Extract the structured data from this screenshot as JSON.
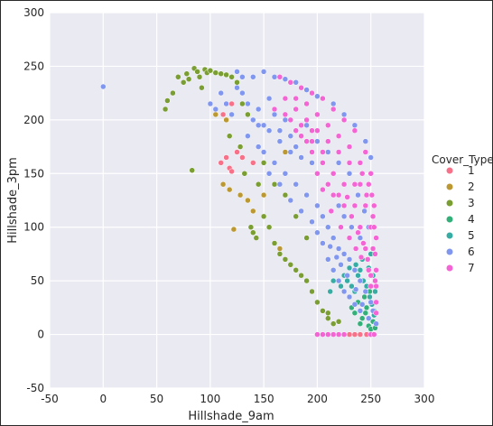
{
  "chart_data": {
    "type": "scatter",
    "title": "",
    "xlabel": "Hillshade_9am",
    "ylabel": "Hillshade_3pm",
    "xlim": [
      -50,
      300
    ],
    "ylim": [
      -50,
      300
    ],
    "x_ticks": [
      -50,
      0,
      50,
      100,
      150,
      200,
      250,
      300
    ],
    "y_ticks": [
      -50,
      0,
      50,
      100,
      150,
      200,
      250,
      300
    ],
    "grid": true,
    "background": "#eaeaf2",
    "legend": {
      "title": "Cover_Type",
      "placement": "right"
    },
    "series": [
      {
        "name": "1",
        "color": "#f77189",
        "points": [
          [
            110,
            160
          ],
          [
            115,
            165
          ],
          [
            118,
            155
          ],
          [
            120,
            152
          ],
          [
            125,
            170
          ],
          [
            130,
            165
          ],
          [
            140,
            160
          ],
          [
            120,
            215
          ],
          [
            112,
            205
          ],
          [
            230,
            0
          ],
          [
            235,
            0
          ],
          [
            240,
            0
          ],
          [
            246,
            0
          ]
        ]
      },
      {
        "name": "2",
        "color": "#bb9832",
        "points": [
          [
            112,
            140
          ],
          [
            118,
            135
          ],
          [
            122,
            98
          ],
          [
            128,
            130
          ],
          [
            135,
            125
          ],
          [
            150,
            130
          ],
          [
            170,
            170
          ],
          [
            105,
            205
          ],
          [
            115,
            200
          ],
          [
            140,
            115
          ],
          [
            165,
            80
          ],
          [
            180,
            60
          ]
        ]
      },
      {
        "name": "3",
        "color": "#7a9e31",
        "points": [
          [
            58,
            210
          ],
          [
            60,
            218
          ],
          [
            65,
            225
          ],
          [
            70,
            240
          ],
          [
            75,
            235
          ],
          [
            78,
            243
          ],
          [
            80,
            238
          ],
          [
            85,
            248
          ],
          [
            83,
            153
          ],
          [
            88,
            245
          ],
          [
            90,
            240
          ],
          [
            92,
            230
          ],
          [
            95,
            247
          ],
          [
            97,
            244
          ],
          [
            100,
            246
          ],
          [
            105,
            244
          ],
          [
            110,
            243
          ],
          [
            115,
            242
          ],
          [
            120,
            240
          ],
          [
            125,
            235
          ],
          [
            130,
            215
          ],
          [
            135,
            205
          ],
          [
            138,
            100
          ],
          [
            140,
            95
          ],
          [
            143,
            90
          ],
          [
            145,
            140
          ],
          [
            150,
            110
          ],
          [
            155,
            100
          ],
          [
            160,
            85
          ],
          [
            165,
            75
          ],
          [
            170,
            70
          ],
          [
            175,
            65
          ],
          [
            180,
            60
          ],
          [
            185,
            55
          ],
          [
            190,
            50
          ],
          [
            195,
            40
          ],
          [
            200,
            30
          ],
          [
            205,
            22
          ],
          [
            210,
            15
          ],
          [
            215,
            10
          ],
          [
            110,
            225
          ],
          [
            118,
            185
          ],
          [
            128,
            175
          ],
          [
            132,
            150
          ],
          [
            150,
            160
          ],
          [
            160,
            140
          ],
          [
            170,
            130
          ],
          [
            180,
            110
          ],
          [
            190,
            90
          ],
          [
            210,
            20
          ],
          [
            220,
            12
          ]
        ]
      },
      {
        "name": "4",
        "color": "#33b07a",
        "points": [
          [
            240,
            10
          ],
          [
            242,
            15
          ],
          [
            245,
            20
          ],
          [
            248,
            8
          ],
          [
            250,
            5
          ],
          [
            252,
            12
          ],
          [
            254,
            6
          ],
          [
            246,
            25
          ],
          [
            238,
            30
          ],
          [
            235,
            20
          ],
          [
            232,
            25
          ],
          [
            244,
            35
          ],
          [
            250,
            30
          ],
          [
            253,
            22
          ],
          [
            249,
            40
          ]
        ]
      },
      {
        "name": "5",
        "color": "#36ada4",
        "points": [
          [
            225,
            55
          ],
          [
            228,
            50
          ],
          [
            232,
            45
          ],
          [
            235,
            40
          ],
          [
            238,
            55
          ],
          [
            240,
            60
          ],
          [
            243,
            50
          ],
          [
            246,
            45
          ],
          [
            249,
            35
          ],
          [
            251,
            28
          ],
          [
            253,
            18
          ],
          [
            230,
            62
          ],
          [
            236,
            65
          ],
          [
            242,
            70
          ],
          [
            248,
            62
          ],
          [
            252,
            55
          ],
          [
            254,
            40
          ],
          [
            222,
            45
          ],
          [
            215,
            50
          ],
          [
            212,
            40
          ],
          [
            245,
            80
          ],
          [
            250,
            75
          ]
        ]
      },
      {
        "name": "6",
        "color": "#8197ef",
        "points": [
          [
            0,
            231
          ],
          [
            100,
            215
          ],
          [
            105,
            210
          ],
          [
            110,
            225
          ],
          [
            115,
            215
          ],
          [
            120,
            205
          ],
          [
            125,
            230
          ],
          [
            130,
            225
          ],
          [
            135,
            215
          ],
          [
            140,
            200
          ],
          [
            145,
            210
          ],
          [
            150,
            195
          ],
          [
            155,
            220
          ],
          [
            160,
            205
          ],
          [
            165,
            190
          ],
          [
            170,
            200
          ],
          [
            175,
            185
          ],
          [
            180,
            175
          ],
          [
            150,
            170
          ],
          [
            160,
            160
          ],
          [
            170,
            150
          ],
          [
            180,
            140
          ],
          [
            190,
            130
          ],
          [
            200,
            120
          ],
          [
            205,
            110
          ],
          [
            210,
            100
          ],
          [
            215,
            90
          ],
          [
            220,
            80
          ],
          [
            225,
            75
          ],
          [
            230,
            70
          ],
          [
            235,
            60
          ],
          [
            240,
            50
          ],
          [
            245,
            40
          ],
          [
            250,
            30
          ],
          [
            135,
            185
          ],
          [
            145,
            175
          ],
          [
            155,
            150
          ],
          [
            165,
            140
          ],
          [
            175,
            125
          ],
          [
            185,
            115
          ],
          [
            195,
            105
          ],
          [
            200,
            95
          ],
          [
            205,
            85
          ],
          [
            210,
            70
          ],
          [
            215,
            60
          ],
          [
            220,
            50
          ],
          [
            225,
            40
          ],
          [
            230,
            35
          ],
          [
            235,
            28
          ],
          [
            240,
            22
          ],
          [
            150,
            245
          ],
          [
            160,
            240
          ],
          [
            170,
            238
          ],
          [
            180,
            235
          ],
          [
            190,
            228
          ],
          [
            200,
            222
          ],
          [
            140,
            240
          ],
          [
            130,
            240
          ],
          [
            125,
            245
          ],
          [
            215,
            215
          ],
          [
            225,
            205
          ],
          [
            235,
            195
          ],
          [
            245,
            180
          ],
          [
            250,
            165
          ],
          [
            230,
            150
          ],
          [
            238,
            130
          ],
          [
            244,
            115
          ],
          [
            248,
            100
          ],
          [
            210,
            140
          ],
          [
            220,
            120
          ],
          [
            225,
            110
          ],
          [
            232,
            100
          ],
          [
            240,
            90
          ],
          [
            195,
            160
          ],
          [
            185,
            165
          ],
          [
            175,
            170
          ],
          [
            165,
            180
          ],
          [
            155,
            190
          ],
          [
            145,
            195
          ],
          [
            190,
            195
          ],
          [
            200,
            180
          ],
          [
            210,
            170
          ],
          [
            220,
            160
          ],
          [
            255,
            10
          ],
          [
            252,
            22
          ],
          [
            248,
            15
          ],
          [
            242,
            28
          ],
          [
            236,
            42
          ],
          [
            228,
            55
          ],
          [
            222,
            65
          ],
          [
            218,
            72
          ],
          [
            212,
            82
          ]
        ]
      },
      {
        "name": "7",
        "color": "#f564d4",
        "points": [
          [
            165,
            240
          ],
          [
            175,
            235
          ],
          [
            185,
            230
          ],
          [
            195,
            225
          ],
          [
            205,
            220
          ],
          [
            215,
            210
          ],
          [
            225,
            200
          ],
          [
            235,
            190
          ],
          [
            245,
            170
          ],
          [
            250,
            150
          ],
          [
            253,
            120
          ],
          [
            255,
            90
          ],
          [
            255,
            60
          ],
          [
            255,
            30
          ],
          [
            200,
            0
          ],
          [
            205,
            0
          ],
          [
            210,
            0
          ],
          [
            215,
            0
          ],
          [
            220,
            0
          ],
          [
            225,
            0
          ],
          [
            250,
            0
          ],
          [
            253,
            0
          ],
          [
            180,
            210
          ],
          [
            190,
            200
          ],
          [
            200,
            190
          ],
          [
            210,
            180
          ],
          [
            220,
            170
          ],
          [
            230,
            160
          ],
          [
            240,
            140
          ],
          [
            245,
            120
          ],
          [
            250,
            100
          ],
          [
            252,
            80
          ],
          [
            254,
            50
          ],
          [
            195,
            180
          ],
          [
            205,
            170
          ],
          [
            215,
            150
          ],
          [
            225,
            140
          ],
          [
            235,
            120
          ],
          [
            240,
            100
          ],
          [
            245,
            80
          ],
          [
            248,
            60
          ],
          [
            250,
            45
          ],
          [
            170,
            220
          ],
          [
            180,
            220
          ],
          [
            190,
            215
          ],
          [
            200,
            205
          ],
          [
            210,
            195
          ],
          [
            220,
            185
          ],
          [
            230,
            175
          ],
          [
            240,
            160
          ],
          [
            248,
            140
          ],
          [
            252,
            110
          ],
          [
            185,
            195
          ],
          [
            195,
            190
          ],
          [
            205,
            160
          ],
          [
            215,
            130
          ],
          [
            225,
            120
          ],
          [
            232,
            110
          ],
          [
            238,
            95
          ],
          [
            243,
            85
          ],
          [
            247,
            70
          ],
          [
            250,
            55
          ],
          [
            160,
            210
          ],
          [
            170,
            205
          ],
          [
            180,
            190
          ],
          [
            190,
            180
          ],
          [
            200,
            150
          ],
          [
            210,
            140
          ],
          [
            220,
            130
          ],
          [
            228,
            128
          ],
          [
            235,
            140
          ],
          [
            242,
            150
          ],
          [
            246,
            130
          ],
          [
            251,
            130
          ],
          [
            253,
            100
          ],
          [
            254,
            75
          ],
          [
            255,
            45
          ],
          [
            255,
            20
          ],
          [
            175,
            200
          ],
          [
            185,
            185
          ],
          [
            195,
            170
          ],
          [
            205,
            135
          ],
          [
            213,
            115
          ],
          [
            222,
            100
          ],
          [
            230,
            90
          ],
          [
            236,
            80
          ],
          [
            241,
            72
          ]
        ]
      }
    ]
  }
}
